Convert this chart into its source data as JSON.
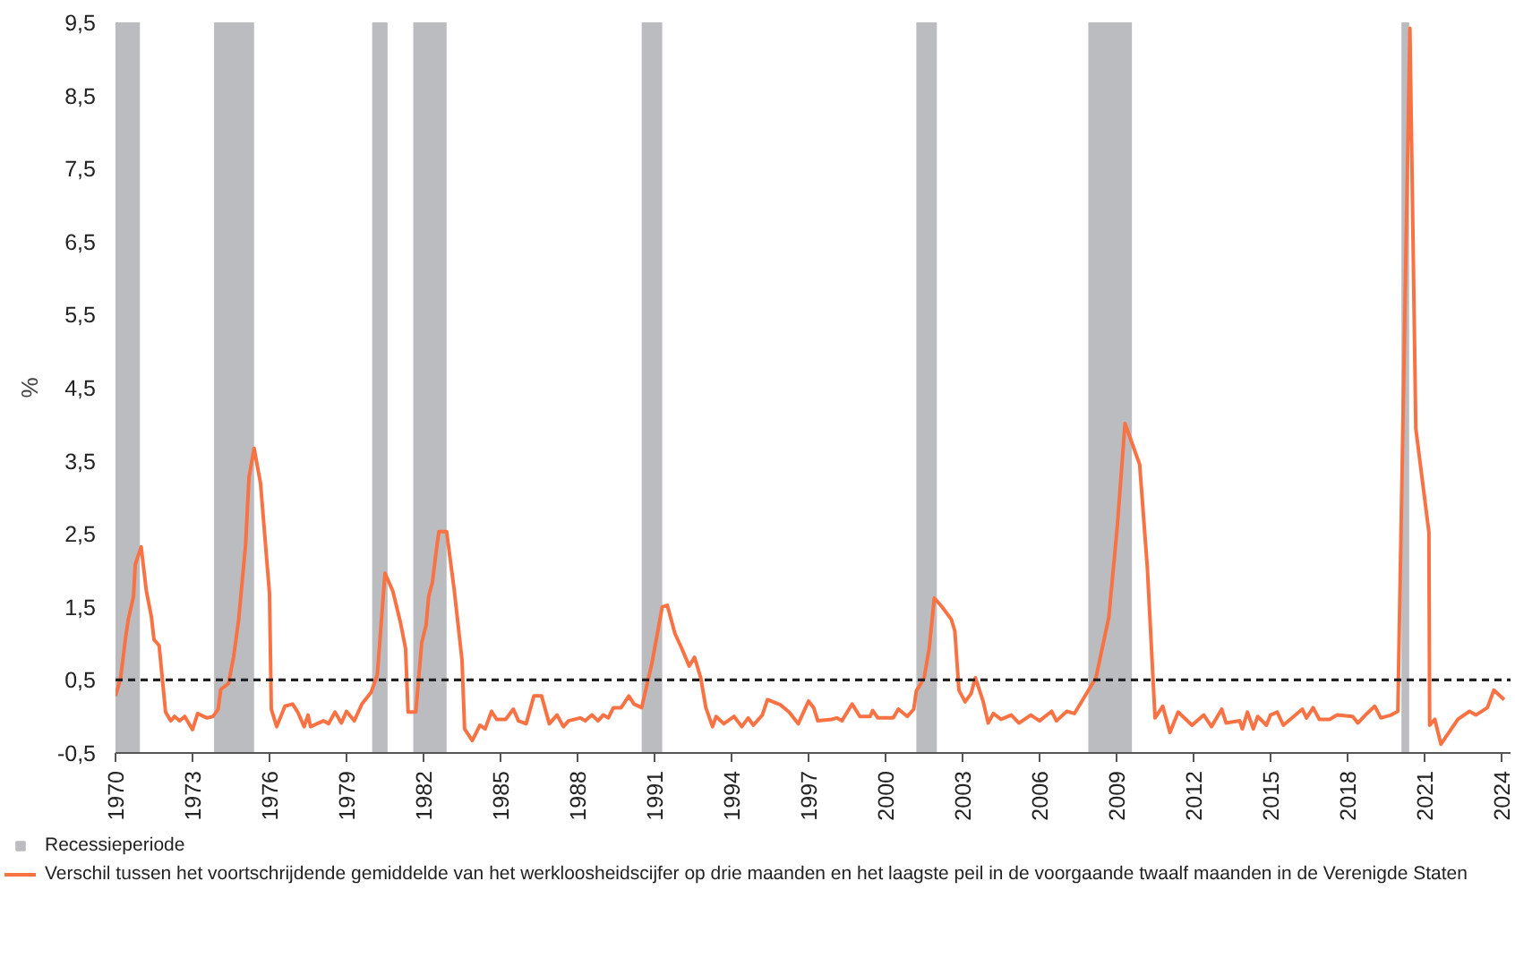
{
  "chart_data": {
    "type": "line",
    "ylabel": "%",
    "xlim": [
      1970,
      2024.35
    ],
    "ylim": [
      -0.5,
      9.5
    ],
    "xticks": [
      1970,
      1973,
      1976,
      1979,
      1982,
      1985,
      1988,
      1991,
      1994,
      1997,
      2000,
      2003,
      2006,
      2009,
      2012,
      2015,
      2018,
      2021,
      2024
    ],
    "yticks": [
      {
        "value": -0.5,
        "label": "-0,5"
      },
      {
        "value": 0.5,
        "label": "0,5"
      },
      {
        "value": 1.5,
        "label": "1,5"
      },
      {
        "value": 2.5,
        "label": "2,5"
      },
      {
        "value": 3.5,
        "label": "3,5"
      },
      {
        "value": 4.5,
        "label": "4,5"
      },
      {
        "value": 5.5,
        "label": "5,5"
      },
      {
        "value": 6.5,
        "label": "6,5"
      },
      {
        "value": 7.5,
        "label": "7,5"
      },
      {
        "value": 8.5,
        "label": "8,5"
      },
      {
        "value": 9.5,
        "label": "9,5"
      }
    ],
    "grid": false,
    "legend": "bottom",
    "ref_lines": [
      {
        "axis": "y",
        "value": 0.5,
        "color": "#222222",
        "line_style": "dashed"
      }
    ],
    "bands": [
      {
        "axis": "x",
        "from": 1970.0,
        "to": 1970.95,
        "color": "#bbbcc0",
        "label": "Recessieperiode"
      },
      {
        "axis": "x",
        "from": 1973.84,
        "to": 1975.4,
        "color": "#bbbcc0"
      },
      {
        "axis": "x",
        "from": 1980.0,
        "to": 1980.6,
        "color": "#bbbcc0"
      },
      {
        "axis": "x",
        "from": 1981.6,
        "to": 1982.9,
        "color": "#bbbcc0"
      },
      {
        "axis": "x",
        "from": 1990.5,
        "to": 1991.3,
        "color": "#bbbcc0"
      },
      {
        "axis": "x",
        "from": 2001.2,
        "to": 2002.0,
        "color": "#bbbcc0"
      },
      {
        "axis": "x",
        "from": 2007.9,
        "to": 2009.6,
        "color": "#bbbcc0"
      },
      {
        "axis": "x",
        "from": 2020.1,
        "to": 2020.4,
        "color": "#bbbcc0"
      }
    ],
    "series": [
      {
        "name": "Verschil tussen het voortschrijdende gemiddelde van het werkloosheidscijfer op drie maanden en het laagste peil in de voorgaande twaalf maanden in de Verenigde Staten",
        "color": "#f97243",
        "line_style": "solid",
        "x": [
          1970.0,
          1970.2,
          1970.4,
          1970.5,
          1970.7,
          1970.77,
          1971.0,
          1971.2,
          1971.4,
          1971.5,
          1971.7,
          1971.95,
          1972.15,
          1972.3,
          1972.5,
          1972.7,
          1973.0,
          1973.2,
          1973.56,
          1973.8,
          1974.0,
          1974.1,
          1974.4,
          1974.6,
          1974.8,
          1975.07,
          1975.2,
          1975.4,
          1975.65,
          1976.0,
          1976.07,
          1976.28,
          1976.6,
          1976.9,
          1977.1,
          1977.35,
          1977.5,
          1977.6,
          1977.85,
          1978.1,
          1978.3,
          1978.55,
          1978.8,
          1979.0,
          1979.3,
          1979.6,
          1979.96,
          1980.2,
          1980.5,
          1980.8,
          1981.1,
          1981.3,
          1981.4,
          1981.7,
          1981.93,
          1982.1,
          1982.2,
          1982.35,
          1982.5,
          1982.6,
          1982.9,
          1983.2,
          1983.5,
          1983.6,
          1983.9,
          1984.2,
          1984.4,
          1984.65,
          1984.85,
          1985.2,
          1985.5,
          1985.7,
          1986.0,
          1986.3,
          1986.6,
          1986.9,
          1987.2,
          1987.45,
          1987.65,
          1988.1,
          1988.3,
          1988.56,
          1988.8,
          1989.0,
          1989.2,
          1989.4,
          1989.7,
          1990.0,
          1990.2,
          1990.5,
          1990.9,
          1991.3,
          1991.5,
          1991.8,
          1992.05,
          1992.35,
          1992.56,
          1992.8,
          1993.0,
          1993.26,
          1993.4,
          1993.7,
          1994.1,
          1994.4,
          1994.65,
          1994.85,
          1995.2,
          1995.4,
          1995.9,
          1996.24,
          1996.6,
          1997.0,
          1997.2,
          1997.36,
          1997.9,
          1998.1,
          1998.3,
          1998.7,
          1999.0,
          1999.4,
          1999.5,
          1999.7,
          2000.3,
          2000.5,
          2000.85,
          2001.1,
          2001.2,
          2001.5,
          2001.7,
          2001.9,
          2002.2,
          2002.56,
          2002.7,
          2002.86,
          2003.1,
          2003.33,
          2003.5,
          2003.8,
          2004.0,
          2004.2,
          2004.5,
          2004.9,
          2005.2,
          2005.66,
          2006.0,
          2006.47,
          2006.66,
          2007.06,
          2007.36,
          2008.2,
          2008.7,
          2009.03,
          2009.33,
          2009.9,
          2010.2,
          2010.5,
          2010.8,
          2011.08,
          2011.4,
          2011.94,
          2012.4,
          2012.7,
          2013.1,
          2013.27,
          2013.8,
          2013.9,
          2014.1,
          2014.33,
          2014.5,
          2014.84,
          2015.0,
          2015.26,
          2015.5,
          2015.9,
          2016.24,
          2016.4,
          2016.66,
          2016.9,
          2017.3,
          2017.6,
          2018.2,
          2018.4,
          2018.7,
          2019.06,
          2019.3,
          2019.7,
          2019.96,
          2020.43,
          2020.66,
          2021.17,
          2021.2,
          2021.4,
          2021.64,
          2022.3,
          2022.75,
          2023.0,
          2023.45,
          2023.7,
          2024.1
        ],
        "values": [
          0.28,
          0.53,
          1.1,
          1.33,
          1.64,
          2.08,
          2.32,
          1.72,
          1.36,
          1.05,
          0.97,
          0.06,
          -0.06,
          0.0,
          -0.06,
          0.0,
          -0.18,
          0.04,
          -0.02,
          0.0,
          0.1,
          0.37,
          0.45,
          0.81,
          1.33,
          2.36,
          3.27,
          3.67,
          3.19,
          1.68,
          0.1,
          -0.14,
          0.14,
          0.17,
          0.06,
          -0.14,
          0.02,
          -0.14,
          -0.1,
          -0.06,
          -0.1,
          0.06,
          -0.09,
          0.07,
          -0.06,
          0.17,
          0.33,
          0.57,
          1.96,
          1.72,
          1.29,
          0.93,
          0.06,
          0.06,
          1.01,
          1.25,
          1.64,
          1.84,
          2.28,
          2.53,
          2.53,
          1.72,
          0.77,
          -0.17,
          -0.33,
          -0.12,
          -0.17,
          0.07,
          -0.04,
          -0.04,
          0.1,
          -0.06,
          -0.1,
          0.28,
          0.28,
          -0.1,
          0.02,
          -0.14,
          -0.06,
          -0.02,
          -0.06,
          0.02,
          -0.06,
          0.02,
          -0.02,
          0.12,
          0.12,
          0.28,
          0.17,
          0.12,
          0.73,
          1.5,
          1.52,
          1.13,
          0.94,
          0.69,
          0.81,
          0.53,
          0.12,
          -0.14,
          0.0,
          -0.1,
          0.0,
          -0.14,
          -0.02,
          -0.12,
          0.02,
          0.23,
          0.16,
          0.06,
          -0.1,
          0.21,
          0.12,
          -0.06,
          -0.04,
          -0.02,
          -0.06,
          0.17,
          0.0,
          0.0,
          0.08,
          -0.02,
          -0.02,
          0.1,
          0.0,
          0.1,
          0.35,
          0.52,
          0.93,
          1.62,
          1.5,
          1.33,
          1.17,
          0.36,
          0.2,
          0.31,
          0.53,
          0.21,
          -0.09,
          0.04,
          -0.04,
          0.02,
          -0.09,
          0.02,
          -0.06,
          0.07,
          -0.06,
          0.07,
          0.04,
          0.53,
          1.36,
          2.6,
          4.01,
          3.45,
          2.04,
          -0.02,
          0.14,
          -0.22,
          0.06,
          -0.12,
          0.02,
          -0.14,
          0.1,
          -0.09,
          -0.06,
          -0.17,
          0.06,
          -0.17,
          0.0,
          -0.12,
          0.02,
          0.06,
          -0.12,
          0.0,
          0.1,
          -0.02,
          0.12,
          -0.04,
          -0.04,
          0.02,
          0.0,
          -0.09,
          0.02,
          0.14,
          -0.02,
          0.02,
          0.07,
          9.42,
          3.94,
          2.52,
          -0.12,
          -0.04,
          -0.38,
          -0.04,
          0.07,
          0.02,
          0.12,
          0.36,
          0.23
        ]
      }
    ]
  }
}
